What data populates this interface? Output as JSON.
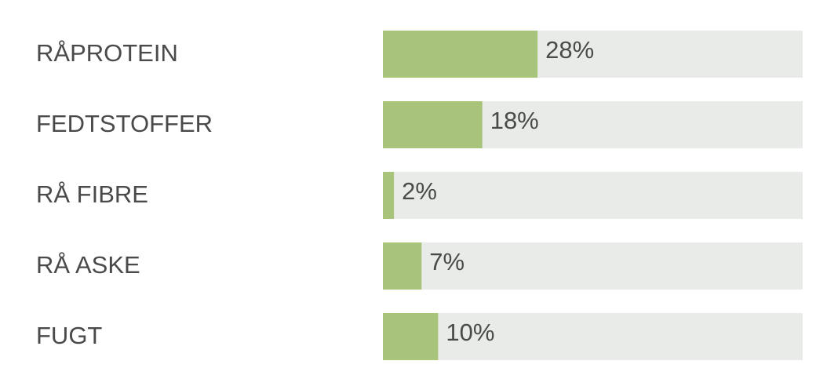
{
  "chart_data": {
    "type": "bar",
    "categories": [
      "RÅPROTEIN",
      "FEDTSTOFFER",
      "RÅ FIBRE",
      "RÅ ASKE",
      "FUGT"
    ],
    "values": [
      28,
      18,
      2,
      7,
      10
    ],
    "value_labels": [
      "28%",
      "18%",
      "2%",
      "7%",
      "10%"
    ],
    "color": "#a8c47a",
    "xlim": [
      0,
      76
    ]
  }
}
